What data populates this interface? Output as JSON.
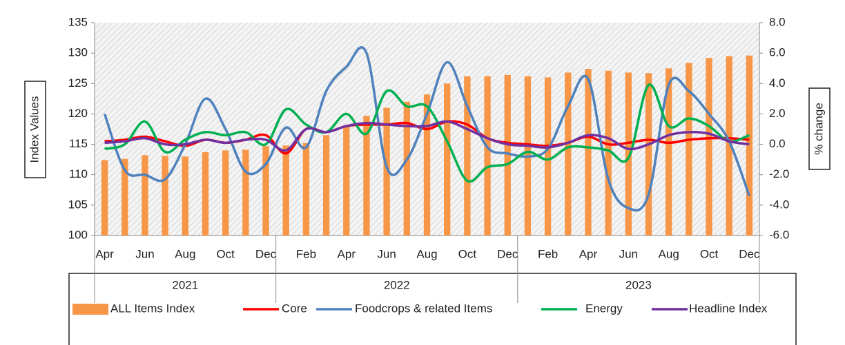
{
  "chart_data": {
    "type": "combo",
    "y_label": "Index Values",
    "y2_label": "% change",
    "categories": [
      "Apr",
      null,
      "Jun",
      null,
      "Aug",
      null,
      "Oct",
      null,
      "Dec",
      null,
      "Feb",
      null,
      "Apr",
      null,
      "Jun",
      null,
      "Aug",
      null,
      "Oct",
      null,
      "Dec",
      null,
      "Feb",
      null,
      "Apr",
      null,
      "Jun",
      null,
      "Aug",
      null,
      "Oct",
      null,
      "Dec"
    ],
    "groups": [
      {
        "label": "2021",
        "count": 9
      },
      {
        "label": "2022",
        "count": 12
      },
      {
        "label": "2023",
        "count": 12
      }
    ],
    "ylim": [
      100,
      135
    ],
    "yticks": [
      100,
      105,
      110,
      115,
      120,
      125,
      130,
      135
    ],
    "y2lim": [
      -6,
      8
    ],
    "y2ticks": [
      {
        "value": -6,
        "label": "-6.0"
      },
      {
        "value": -4,
        "label": "-4.0"
      },
      {
        "value": -2,
        "label": "-2.0"
      },
      {
        "value": 0,
        "label": "0.0"
      },
      {
        "value": 2,
        "label": "2.0"
      },
      {
        "value": 4,
        "label": "4.0"
      },
      {
        "value": 6,
        "label": "6.0"
      },
      {
        "value": 8,
        "label": "8.0"
      }
    ],
    "grid": false,
    "legend": "bottom",
    "series": [
      {
        "name": "ALL Items Index",
        "type": "bar",
        "axis": "y",
        "color": "#f79646",
        "values": [
          112.4,
          112.6,
          113.2,
          113.1,
          113.0,
          113.7,
          114.0,
          114.1,
          114.7,
          114.8,
          115.2,
          116.5,
          118.0,
          119.7,
          121.0,
          122.0,
          123.2,
          125.0,
          126.2,
          126.2,
          126.4,
          126.2,
          126.0,
          126.8,
          127.4,
          127.1,
          126.8,
          126.7,
          127.5,
          128.4,
          129.2,
          129.5,
          129.6
        ]
      },
      {
        "name": "Core",
        "type": "line",
        "axis": "y2",
        "color": "#ff0000",
        "values": [
          0.2,
          0.3,
          0.5,
          0.2,
          -0.1,
          0.3,
          0.1,
          0.3,
          0.6,
          -0.6,
          1.0,
          0.8,
          1.2,
          1.3,
          1.3,
          1.4,
          1.0,
          1.5,
          1.3,
          0.4,
          0.1,
          0.0,
          -0.1,
          0.1,
          0.5,
          0.0,
          0.1,
          0.3,
          0.1,
          0.3,
          0.4,
          0.4,
          0.3
        ]
      },
      {
        "name": "Foodcrops & related Items",
        "type": "line",
        "axis": "y2",
        "color": "#4f81bd",
        "values": [
          2.0,
          -1.7,
          -2.0,
          -2.3,
          0.0,
          3.0,
          1.0,
          -1.8,
          -1.3,
          1.1,
          -0.2,
          3.5,
          5.1,
          6.0,
          -1.5,
          -1.0,
          2.0,
          5.4,
          2.5,
          -0.2,
          -0.6,
          -0.8,
          -0.3,
          2.5,
          4.3,
          -2.3,
          -4.2,
          -3.3,
          3.9,
          3.5,
          2.0,
          0.2,
          -3.4
        ]
      },
      {
        "name": "Energy",
        "type": "line",
        "axis": "y2",
        "color": "#00b050",
        "values": [
          -0.3,
          0.0,
          1.5,
          -0.5,
          0.3,
          0.8,
          0.6,
          0.8,
          0.0,
          2.3,
          1.3,
          0.8,
          2.0,
          0.7,
          3.5,
          2.5,
          2.5,
          0.2,
          -2.4,
          -1.5,
          -1.3,
          -0.5,
          -1.0,
          -0.2,
          -0.2,
          -0.4,
          -0.9,
          3.9,
          1.2,
          1.7,
          1.2,
          0.2,
          0.6
        ]
      },
      {
        "name": "Headline Index",
        "type": "line",
        "axis": "y2",
        "color": "#7030a0",
        "values": [
          0.1,
          0.2,
          0.4,
          0.0,
          0.0,
          0.3,
          0.1,
          0.3,
          0.3,
          -0.4,
          1.0,
          0.8,
          1.2,
          1.4,
          1.3,
          1.2,
          1.2,
          1.5,
          1.0,
          0.4,
          0.0,
          -0.1,
          -0.2,
          0.1,
          0.6,
          0.4,
          -0.3,
          0.0,
          0.6,
          0.8,
          0.7,
          0.2,
          0.0
        ]
      }
    ]
  }
}
